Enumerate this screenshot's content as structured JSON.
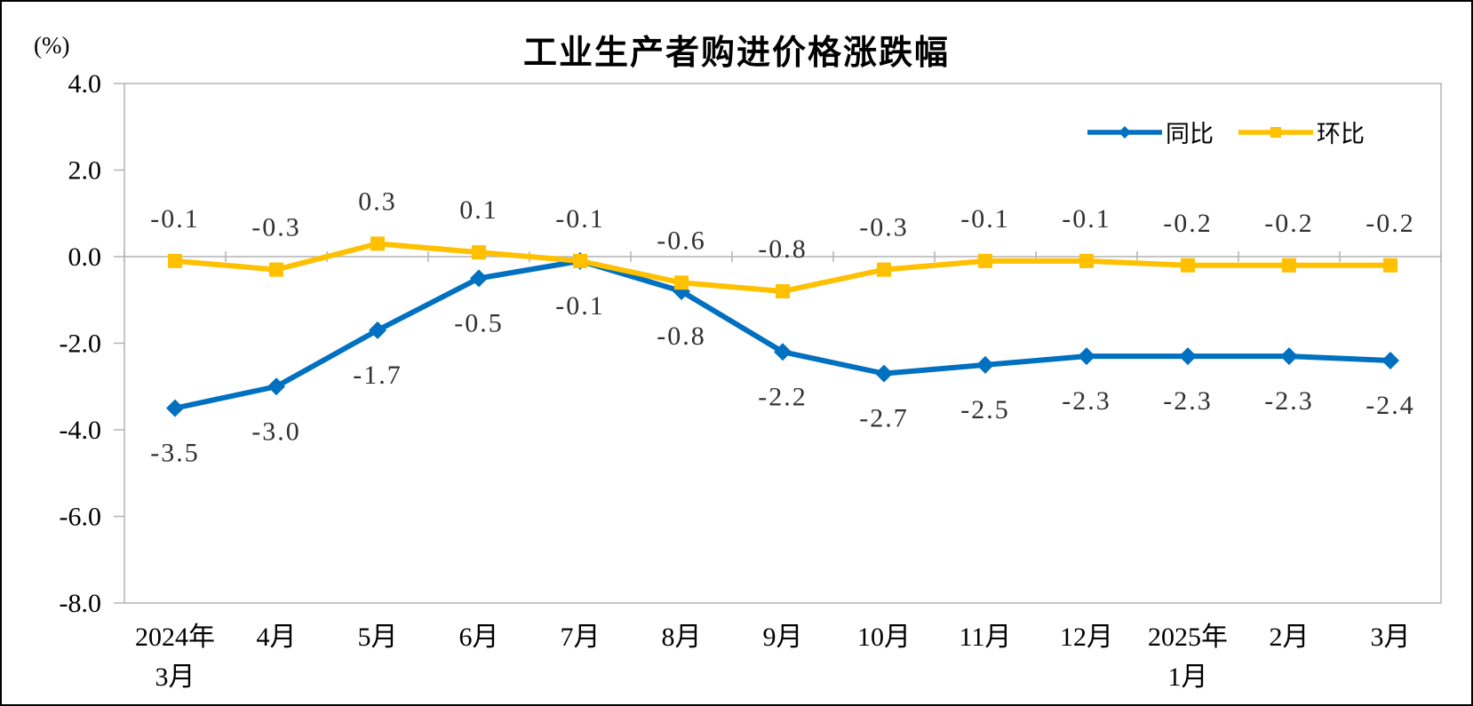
{
  "chart_data": {
    "type": "line",
    "title": "工业生产者购进价格涨跌幅",
    "ylabel": "(%)",
    "categories": [
      [
        "2024年",
        "3月"
      ],
      [
        "4月"
      ],
      [
        "5月"
      ],
      [
        "6月"
      ],
      [
        "7月"
      ],
      [
        "8月"
      ],
      [
        "9月"
      ],
      [
        "10月"
      ],
      [
        "11月"
      ],
      [
        "12月"
      ],
      [
        "2025年",
        "1月"
      ],
      [
        "2月"
      ],
      [
        "3月"
      ]
    ],
    "series": [
      {
        "name": "同比",
        "color": "#0070C0",
        "marker": "diamond",
        "label_position": "below",
        "values": [
          -3.5,
          -3.0,
          -1.7,
          -0.5,
          -0.1,
          -0.8,
          -2.2,
          -2.7,
          -2.5,
          -2.3,
          -2.3,
          -2.3,
          -2.4
        ]
      },
      {
        "name": "环比",
        "color": "#FFC000",
        "marker": "square",
        "label_position": "above",
        "values": [
          -0.1,
          -0.3,
          0.3,
          0.1,
          -0.1,
          -0.6,
          -0.8,
          -0.3,
          -0.1,
          -0.1,
          -0.2,
          -0.2,
          -0.2
        ]
      }
    ],
    "y_axis": {
      "min": -8.0,
      "max": 4.0,
      "step": 2.0,
      "tick_labels": [
        "4.0",
        "2.0",
        "0.0",
        "-2.0",
        "-4.0",
        "-6.0",
        "-8.0"
      ]
    },
    "x_axis_position": "zero-line",
    "grid": false,
    "legend_position": "top-right",
    "axis_color": "#B3B3B3",
    "data_label_color": "#303030"
  }
}
